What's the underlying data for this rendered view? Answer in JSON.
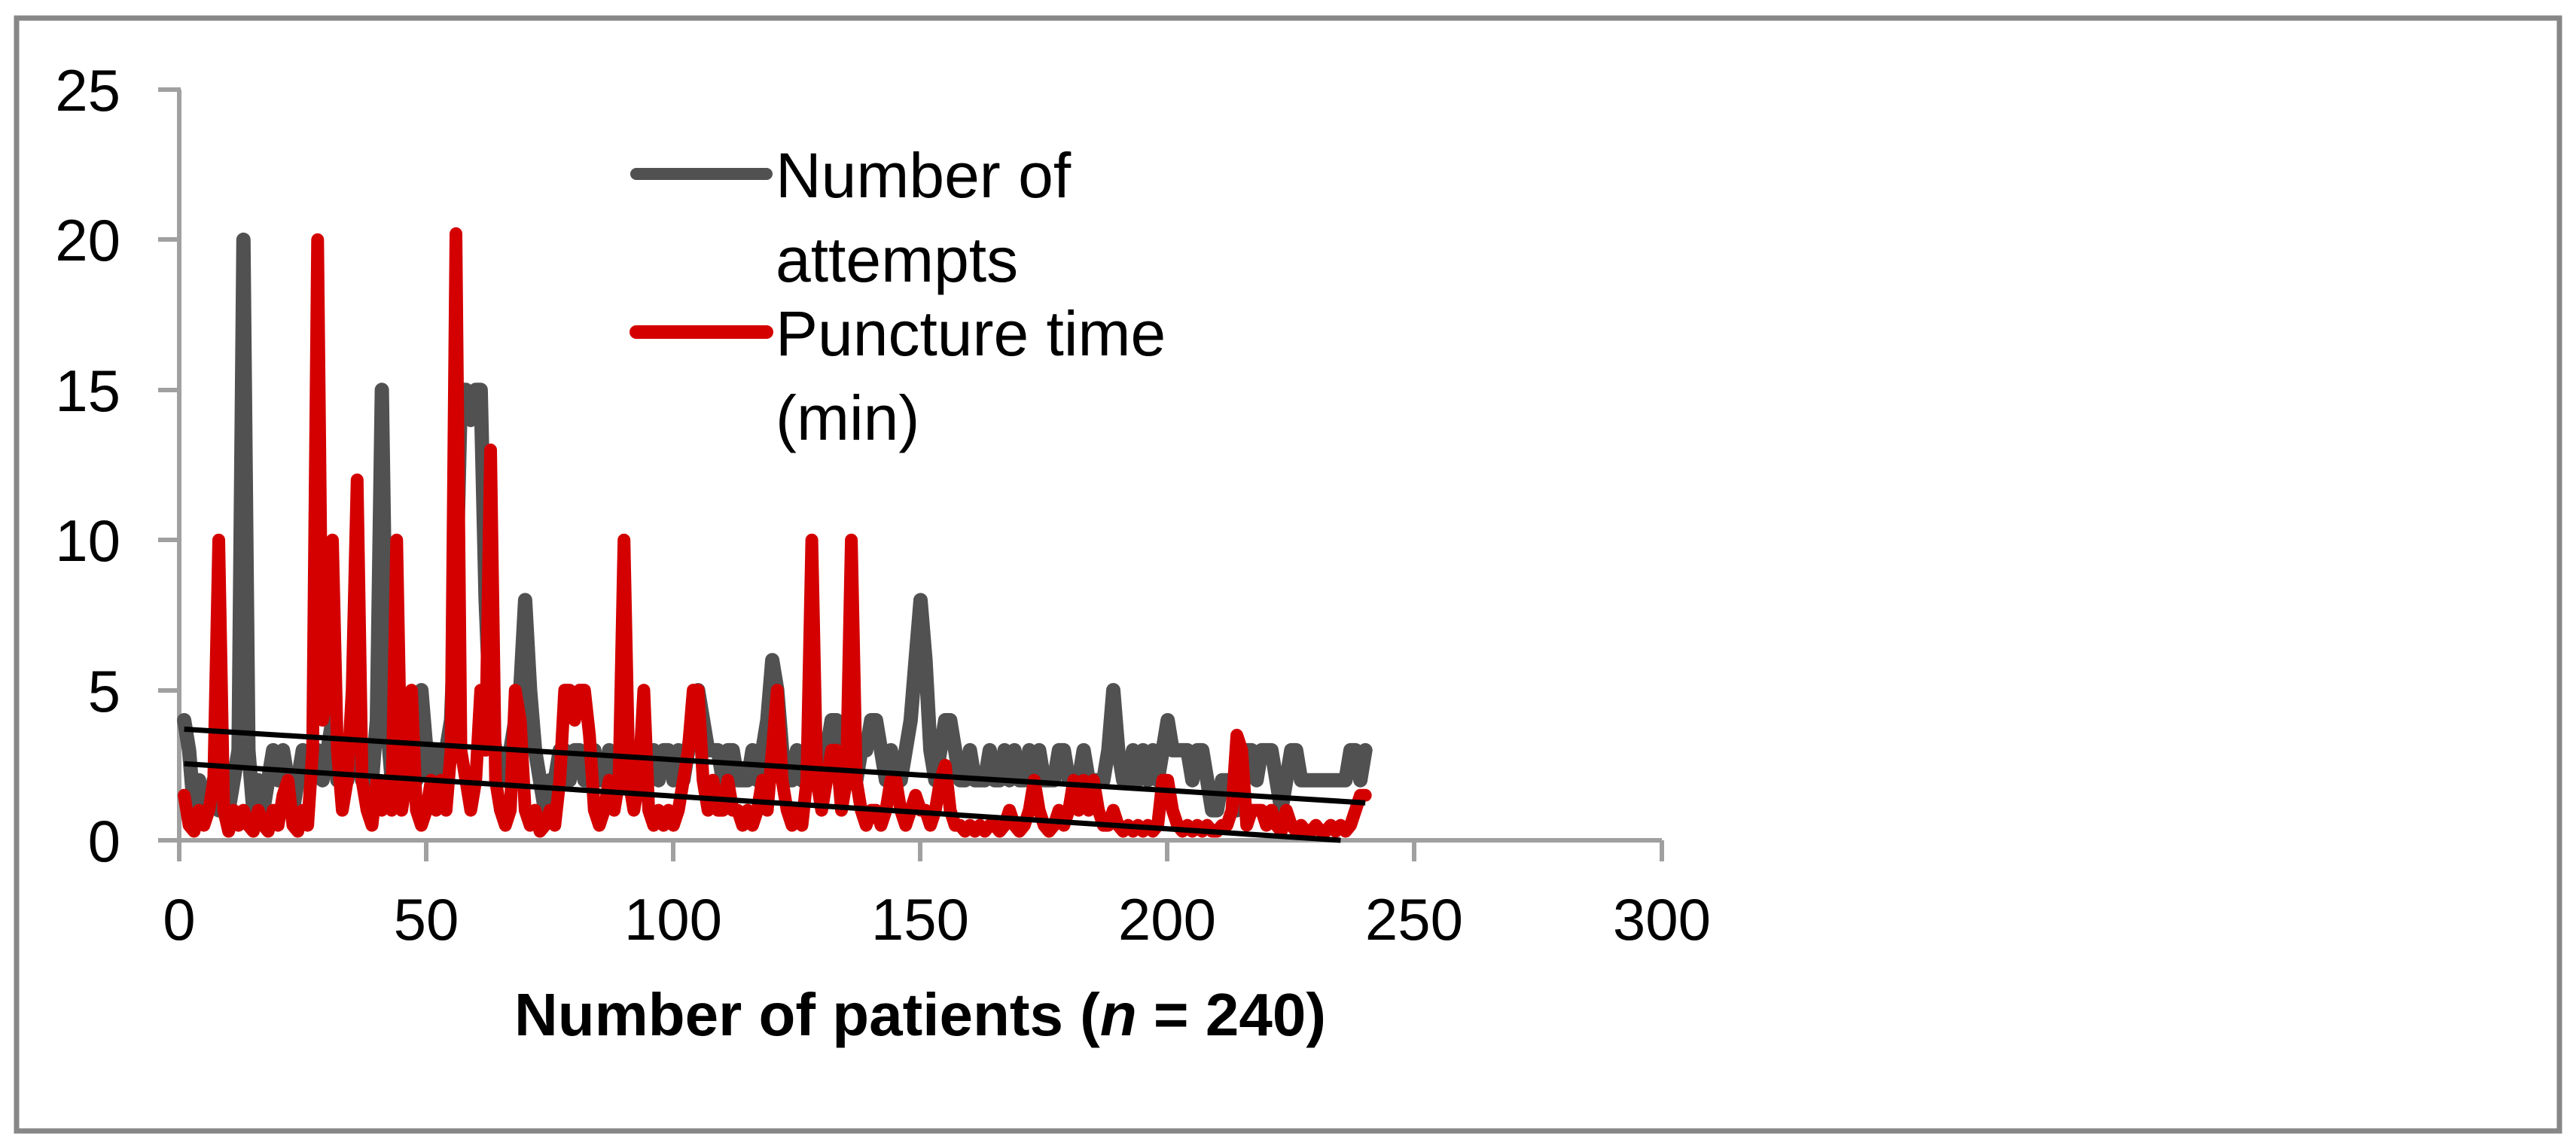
{
  "figure": {
    "border_color": "#878787",
    "axis_color": "#a0a0a0",
    "background": "#ffffff",
    "text_color": "#000000"
  },
  "chart_data": {
    "type": "line",
    "title": "",
    "xlabel_parts": {
      "prefix": "Number of patients (",
      "italic": "n",
      "suffix": " = 240)"
    },
    "xlabel_full": "Number of patients (n = 240)",
    "x_axis": {
      "min": 0,
      "max": 300,
      "ticks": [
        0,
        50,
        100,
        150,
        200,
        250,
        300
      ],
      "grid": false
    },
    "y_axis": {
      "min": 0,
      "max": 25,
      "ticks": [
        0,
        5,
        10,
        15,
        20,
        25
      ],
      "grid": false
    },
    "n_patients": 240,
    "legend": {
      "position": "top-center",
      "items": [
        {
          "key": "attempts",
          "lines": [
            "Number of",
            "attempts"
          ],
          "color": "#515151"
        },
        {
          "key": "puncture",
          "lines": [
            "Puncture time",
            "(min)"
          ],
          "color": "#d40000"
        }
      ]
    },
    "series": [
      {
        "key": "attempts",
        "name": "Number of attempts",
        "color": "#515151",
        "values": [
          4,
          3,
          1,
          2,
          1,
          1,
          2,
          1,
          2,
          1,
          2,
          3,
          20,
          3,
          1,
          2,
          1,
          2,
          3,
          2,
          3,
          2,
          1,
          2,
          3,
          2,
          3,
          3,
          2,
          3,
          4,
          2,
          3,
          2,
          3,
          4,
          2,
          3,
          2,
          4,
          15,
          4,
          2,
          3,
          2,
          2,
          3,
          2,
          5,
          3,
          2,
          3,
          2,
          3,
          4,
          8,
          15,
          15,
          14,
          15,
          15,
          8,
          4,
          3,
          2,
          2,
          3,
          4,
          5,
          8,
          5,
          3,
          2,
          1,
          2,
          2,
          3,
          3,
          2,
          3,
          3,
          2,
          2,
          3,
          2,
          2,
          3,
          2,
          3,
          3,
          2,
          2,
          3,
          3,
          2,
          3,
          2,
          3,
          3,
          2,
          3,
          2,
          3,
          4,
          5,
          4,
          3,
          3,
          3,
          2,
          3,
          3,
          2,
          2,
          2,
          3,
          2,
          3,
          4,
          6,
          5,
          3,
          2,
          2,
          3,
          2,
          2,
          3,
          2,
          3,
          3,
          4,
          4,
          3,
          2,
          3,
          2,
          3,
          3,
          4,
          4,
          3,
          2,
          3,
          2,
          2,
          3,
          4,
          6,
          8,
          6,
          3,
          2,
          3,
          4,
          4,
          3,
          2,
          2,
          3,
          2,
          2,
          2,
          3,
          2,
          2,
          3,
          2,
          3,
          2,
          2,
          3,
          2,
          3,
          2,
          2,
          2,
          3,
          3,
          2,
          2,
          2,
          3,
          2,
          2,
          2,
          2,
          3,
          5,
          3,
          2,
          2,
          3,
          2,
          3,
          2,
          3,
          2,
          3,
          4,
          3,
          3,
          3,
          3,
          2,
          3,
          3,
          2,
          1,
          1,
          2,
          2,
          2,
          1,
          2,
          3,
          3,
          2,
          3,
          3,
          3,
          2,
          1,
          2,
          3,
          3,
          2,
          2,
          2,
          2,
          2,
          2,
          2,
          2,
          2,
          2,
          3,
          3,
          2,
          3
        ]
      },
      {
        "key": "puncture",
        "name": "Puncture time (min)",
        "color": "#d40000",
        "values": [
          1.5,
          0.5,
          0.3,
          1,
          0.5,
          1,
          2,
          10,
          1,
          0.3,
          1,
          0.5,
          1,
          0.5,
          0.3,
          1,
          0.5,
          0.3,
          1,
          0.5,
          1.5,
          2,
          0.5,
          0.3,
          1,
          0.5,
          3,
          20,
          4,
          5,
          10,
          3,
          1,
          2,
          5,
          12,
          2,
          1,
          0.5,
          2,
          1,
          2,
          1,
          10,
          1,
          2,
          5,
          1,
          0.5,
          1,
          2,
          1,
          2,
          1,
          3,
          20.2,
          3,
          2,
          1,
          2,
          5,
          3,
          13,
          2,
          1,
          0.5,
          1,
          5,
          4,
          1,
          0.5,
          1,
          0.3,
          0.5,
          1,
          0.5,
          2,
          5,
          5,
          4,
          5,
          5,
          3.5,
          1,
          0.5,
          1,
          2,
          1,
          2,
          10,
          2,
          1,
          2,
          5,
          1,
          0.5,
          1,
          0.5,
          1,
          0.5,
          1,
          2,
          3,
          5,
          5,
          2,
          1,
          2,
          1,
          1,
          2,
          1,
          1,
          0.5,
          1,
          0.5,
          1,
          2,
          1,
          3,
          5,
          2,
          1,
          0.5,
          1,
          0.5,
          2,
          10,
          2,
          1,
          2,
          3,
          3,
          1,
          2,
          10,
          2,
          1,
          0.5,
          1,
          1,
          0.5,
          1,
          2,
          2,
          1,
          0.5,
          1,
          1.5,
          1,
          1,
          0.5,
          1,
          2,
          2.5,
          1,
          0.5,
          0.5,
          0.3,
          0.5,
          0.3,
          0.5,
          0.3,
          0.5,
          0.5,
          0.3,
          0.5,
          1,
          0.5,
          0.3,
          0.5,
          1,
          2,
          1,
          0.5,
          0.3,
          0.5,
          1,
          0.5,
          1,
          2,
          1,
          2,
          1,
          2,
          1,
          0.5,
          0.5,
          1,
          0.5,
          0.3,
          0.5,
          0.3,
          0.5,
          0.3,
          0.5,
          0.3,
          0.5,
          2,
          2,
          1,
          0.5,
          0.3,
          0.5,
          0.3,
          0.5,
          0.3,
          0.5,
          0.3,
          0.3,
          0.5,
          0.5,
          1,
          3.5,
          3,
          0.5,
          1,
          1,
          1,
          0.5,
          1,
          0.5,
          0.3,
          1,
          0.5,
          0.3,
          0.5,
          0.3,
          0.3,
          0.5,
          0.3,
          0.3,
          0.5,
          0.3,
          0.5,
          0.3,
          0.5,
          1,
          1.5,
          1.5
        ]
      }
    ],
    "trendlines": [
      {
        "key": "attempts",
        "series": "Number of attempts",
        "color": "#000000",
        "x": [
          1,
          240
        ],
        "y": [
          3.7,
          1.25
        ]
      },
      {
        "key": "puncture",
        "series": "Puncture time (min)",
        "color": "#000000",
        "x": [
          1,
          235
        ],
        "y": [
          2.55,
          0
        ]
      }
    ]
  }
}
